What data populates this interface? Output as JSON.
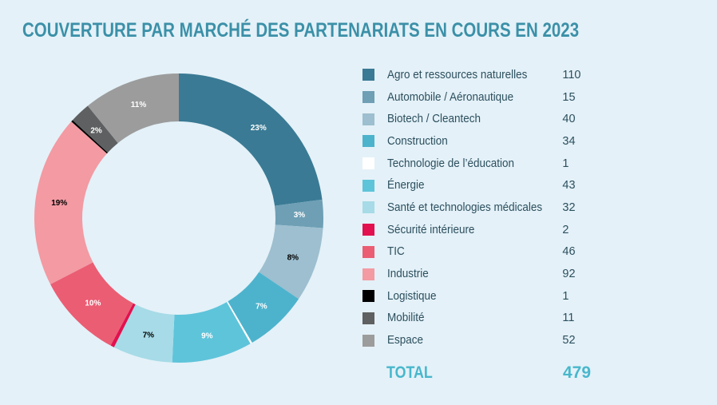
{
  "title": "COUVERTURE PAR MARCHÉ DES PARTENARIATS EN COURS EN 2023",
  "total": {
    "label": "TOTAL",
    "value": "479"
  },
  "chart_data": {
    "type": "pie",
    "variant": "donut",
    "title": "COUVERTURE PAR MARCHÉ DES PARTENARIATS EN COURS EN 2023",
    "legend_position": "right",
    "categories": [
      "Agro et ressources naturelles",
      "Automobile / Aéronautique",
      "Biotech / Cleantech",
      "Construction",
      "Technologie de l’éducation",
      "Énergie",
      "Santé et technologies médicales",
      "Sécurité intérieure",
      "TIC",
      "Industrie",
      "Logistique",
      "Mobilité",
      "Espace"
    ],
    "values": [
      110,
      15,
      40,
      34,
      1,
      43,
      32,
      2,
      46,
      92,
      1,
      11,
      52
    ],
    "percent_labels": [
      "23%",
      "3%",
      "8%",
      "7%",
      "",
      "9%",
      "7%",
      "",
      "10%",
      "19%",
      "",
      "2%",
      "11%"
    ],
    "colors": [
      "#3a7a94",
      "#6e9fb5",
      "#9dbfcf",
      "#4db3cd",
      "#ffffff",
      "#5ec4da",
      "#a6dbe7",
      "#e3104f",
      "#eb5d73",
      "#f39aa3",
      "#000000",
      "#5e6061",
      "#9c9c9c"
    ],
    "label_colors": [
      "#ffffff",
      "#ffffff",
      "#000000",
      "#ffffff",
      "#000000",
      "#ffffff",
      "#000000",
      "#000000",
      "#ffffff",
      "#000000",
      "#000000",
      "#ffffff",
      "#ffffff"
    ]
  }
}
